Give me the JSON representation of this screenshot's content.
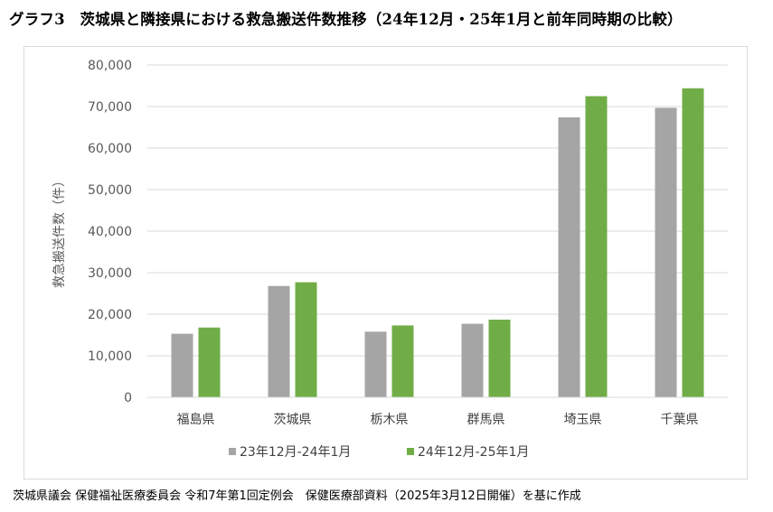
{
  "title": "グラフ3　茨城県と隣接県における救急搬送件数推移（24年12月・25年1月と前年同時期の比較）",
  "source": "茨城県議会 保健福祉医療委員会 令和7年第1回定例会　保健医療部資料（2025年3月12日開催）を基に作成",
  "chart_data": {
    "type": "bar",
    "title": "グラフ3　茨城県と隣接県における救急搬送件数推移（24年12月・25年1月と前年同時期の比較）",
    "ylabel": "救急搬送件数（件）",
    "xlabel": "",
    "ylim": [
      0,
      80000
    ],
    "yticks": [
      0,
      10000,
      20000,
      30000,
      40000,
      50000,
      60000,
      70000,
      80000
    ],
    "ytick_labels": [
      "0",
      "10,000",
      "20,000",
      "30,000",
      "40,000",
      "50,000",
      "60,000",
      "70,000",
      "80,000"
    ],
    "categories": [
      "福島県",
      "茨城県",
      "栃木県",
      "群馬県",
      "埼玉県",
      "千葉県"
    ],
    "series": [
      {
        "name": "23年12月-24年1月",
        "color": "#a5a5a5",
        "values": [
          15300,
          26800,
          15800,
          17700,
          67400,
          69700
        ]
      },
      {
        "name": "24年12月-25年1月",
        "color": "#70ad47",
        "values": [
          16800,
          27700,
          17300,
          18700,
          72500,
          74400
        ]
      }
    ],
    "grid": true,
    "legend_position": "bottom"
  }
}
